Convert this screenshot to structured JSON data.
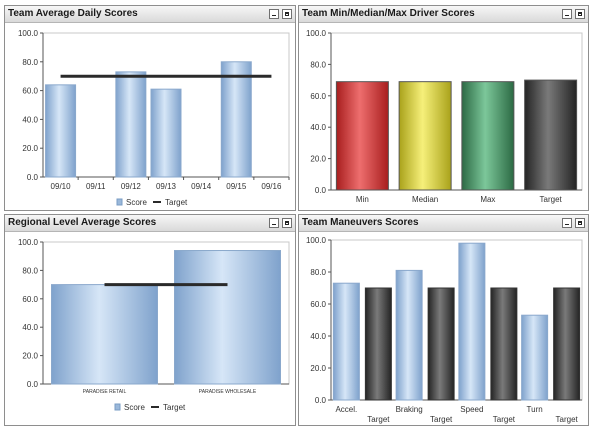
{
  "panels": [
    {
      "title": "Team Average Daily Scores"
    },
    {
      "title": "Team Min/Median/Max Driver Scores"
    },
    {
      "title": "Regional Level Average Scores"
    },
    {
      "title": "Team Maneuvers Scores"
    }
  ],
  "colors": {
    "score_blue": "#9ab8da",
    "target_line": "#2a2a2a",
    "min_red": "#d42a2a",
    "median_yellow": "#d9d12a",
    "max_green": "#3f8a5a",
    "target_gray": "#3c3c3c"
  },
  "icons": [
    "minimize-icon",
    "maximize-icon"
  ],
  "chart_data": [
    {
      "type": "bar",
      "title": "Team Average Daily Scores",
      "categories": [
        "09/10",
        "09/11",
        "09/12",
        "09/13",
        "09/14",
        "09/15",
        "09/16"
      ],
      "series": [
        {
          "name": "Score",
          "values": [
            64,
            null,
            73,
            61,
            null,
            80,
            null
          ]
        },
        {
          "name": "Target",
          "type": "line",
          "values": [
            70,
            70,
            70,
            70,
            70,
            70,
            70
          ]
        }
      ],
      "yticks": [
        "100.0",
        "80.0",
        "60.0",
        "40.0",
        "20.0",
        "0.0"
      ],
      "ylim": [
        0,
        100
      ],
      "legend": [
        "Score",
        "Target"
      ],
      "legend_position": "bottom"
    },
    {
      "type": "bar",
      "title": "Team Min/Median/Max Driver Scores",
      "categories": [
        "Min",
        "Median",
        "Max",
        "Target"
      ],
      "values": [
        69,
        69,
        69,
        70
      ],
      "yticks": [
        "100.0",
        "80.0",
        "60.0",
        "40.0",
        "20.0",
        "0.0"
      ],
      "ylim": [
        0,
        100
      ]
    },
    {
      "type": "bar",
      "title": "Regional Level Average Scores",
      "categories": [
        "PARADISE RETAIL",
        "PARADISE WHOLESALE"
      ],
      "series": [
        {
          "name": "Score",
          "values": [
            70,
            94
          ]
        },
        {
          "name": "Target",
          "type": "line",
          "values": [
            70,
            70
          ]
        }
      ],
      "yticks": [
        "100.0",
        "80.0",
        "60.0",
        "40.0",
        "20.0",
        "0.0"
      ],
      "ylim": [
        0,
        100
      ],
      "legend": [
        "Score",
        "Target"
      ],
      "legend_position": "bottom"
    },
    {
      "type": "bar",
      "title": "Team Maneuvers Scores",
      "categories": [
        "Accel.",
        "Braking",
        "Speed",
        "Turn"
      ],
      "series": [
        {
          "name": "Score",
          "values": [
            73,
            81,
            98,
            53
          ]
        },
        {
          "name": "Target",
          "values": [
            70,
            70,
            70,
            70
          ]
        }
      ],
      "target_label": "Target",
      "yticks": [
        "100.0",
        "80.0",
        "60.0",
        "40.0",
        "20.0",
        "0.0"
      ],
      "ylim": [
        0,
        100
      ]
    }
  ]
}
